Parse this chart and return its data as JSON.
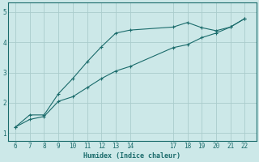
{
  "xlabel": "Humidex (Indice chaleur)",
  "bg_color": "#cce8e8",
  "grid_color": "#aacccc",
  "line_color": "#1a6b6b",
  "x_ticks": [
    6,
    7,
    8,
    9,
    10,
    11,
    12,
    13,
    14,
    17,
    18,
    19,
    20,
    21,
    22
  ],
  "y_ticks": [
    1,
    2,
    3,
    4,
    5
  ],
  "ylim": [
    0.75,
    5.3
  ],
  "xlim": [
    5.5,
    22.8
  ],
  "line1_x": [
    6,
    7,
    8,
    9,
    10,
    11,
    12,
    13,
    14,
    17,
    18,
    19,
    20,
    21,
    22
  ],
  "line1_y": [
    1.2,
    1.6,
    1.6,
    2.3,
    2.8,
    3.35,
    3.85,
    4.3,
    4.4,
    4.5,
    4.65,
    4.48,
    4.38,
    4.5,
    4.78
  ],
  "line2_x": [
    6,
    7,
    8,
    9,
    10,
    11,
    12,
    13,
    14,
    17,
    18,
    19,
    20,
    21,
    22
  ],
  "line2_y": [
    1.2,
    1.45,
    1.55,
    2.05,
    2.2,
    2.5,
    2.8,
    3.05,
    3.2,
    3.82,
    3.92,
    4.15,
    4.3,
    4.5,
    4.78
  ],
  "tick_fontsize": 5.5,
  "xlabel_fontsize": 6.0
}
